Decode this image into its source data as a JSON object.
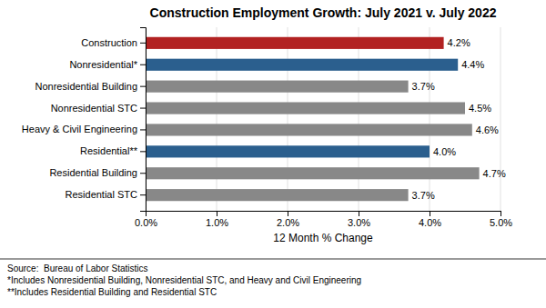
{
  "chart_data": {
    "type": "bar",
    "orientation": "horizontal",
    "title": "Construction Employment Growth: July 2021 v. July 2022",
    "categories": [
      "Residential STC",
      "Residential Building",
      "Residential**",
      "Heavy & Civil Engineering",
      "Nonresidential STC",
      "Nonresidential Building",
      "Nonresidential*",
      "Construction"
    ],
    "values": [
      3.7,
      4.7,
      4.0,
      4.6,
      4.5,
      3.7,
      4.4,
      4.2
    ],
    "value_labels": [
      "3.7%",
      "4.7%",
      "4.0%",
      "4.6%",
      "4.5%",
      "3.7%",
      "4.4%",
      "4.2%"
    ],
    "data_labels": true,
    "colors": [
      "#888888",
      "#888888",
      "#2B5F8E",
      "#888888",
      "#888888",
      "#888888",
      "#2B5F8E",
      "#B22222"
    ],
    "xlim": [
      0,
      5.0
    ],
    "xticks": [
      {
        "value": 0.0,
        "label": "0.0%"
      },
      {
        "value": 1.0,
        "label": "1.0%"
      },
      {
        "value": 2.0,
        "label": "2.0%"
      },
      {
        "value": 3.0,
        "label": "3.0%"
      },
      {
        "value": 4.0,
        "label": "4.0%"
      },
      {
        "value": 5.0,
        "label": "5.0%"
      }
    ],
    "xlabel": "12 Month % Change",
    "grid": true,
    "annotations": [
      "Source:  Bureau of Labor Statistics",
      "*Includes Nonresidential Building, Nonresidential STC, and Heavy and Civil Engineering",
      "**Includes Residential Building and Residential STC"
    ]
  }
}
